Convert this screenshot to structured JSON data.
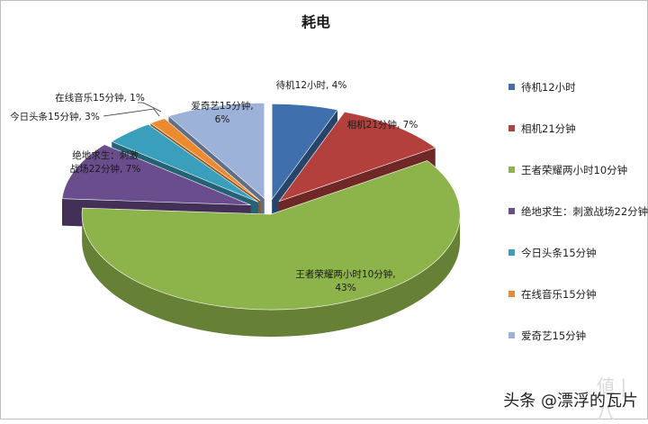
{
  "chart_data": {
    "type": "pie",
    "title": "耗电",
    "slices": [
      {
        "label": "待机12小时",
        "value": 4,
        "color": "#3f6fac",
        "data_label": "待机12小时, 4%"
      },
      {
        "label": "相机21分钟",
        "value": 7,
        "color": "#b3403d",
        "data_label": "相机21分钟, 7%"
      },
      {
        "label": "王者荣耀两小时10分钟",
        "value": 43,
        "color": "#8db34b",
        "data_label_lines": [
          "王者荣耀两小时10分钟,",
          "43%"
        ]
      },
      {
        "label": "绝地求生：刺激战场22分钟",
        "value": 7,
        "color": "#6a4d8c",
        "data_label_lines": [
          "绝地求生：刺激",
          "战场22分钟, 7%"
        ]
      },
      {
        "label": "今日头条15分钟",
        "value": 3,
        "color": "#3a9fbd",
        "data_label": "今日头条15分钟, 3%"
      },
      {
        "label": "在线音乐15分钟",
        "value": 1,
        "color": "#ec8a2f",
        "data_label": "在线音乐15分钟, 1%"
      },
      {
        "label": "爱奇艺15分钟",
        "value": 6,
        "color": "#9db2d8",
        "data_label_lines": [
          "爱奇艺15分钟,",
          "6%"
        ]
      }
    ],
    "legend_position": "right"
  },
  "watermark": {
    "logo": "値 | 八",
    "text": "头条 @漂浮的瓦片"
  }
}
